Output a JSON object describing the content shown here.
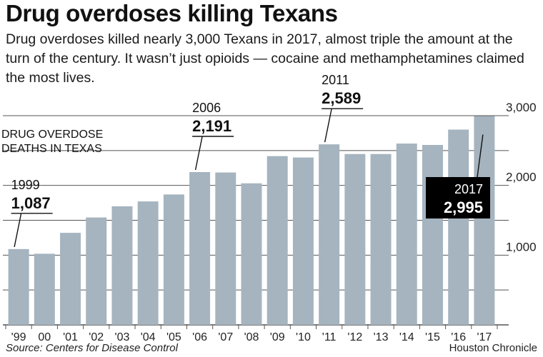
{
  "title": "Drug overdoses killing Texans",
  "subtitle": "Drug overdoses killed nearly 3,000 Texans in 2017, almost triple the amount at the turn of the century. It wasn’t just opioids — cocaine and methamphetamines claimed the most lives.",
  "source": "Source: Centers for Disease Control",
  "credit": "Houston Chronicle",
  "colors": {
    "bar": "#a5b4bf",
    "grid": "#555555",
    "callout_box": "#000000"
  },
  "chart_data": {
    "type": "bar",
    "ylabel_lines": [
      "DRUG OVERDOSE",
      "DEATHS IN TEXAS"
    ],
    "categories": [
      "'99",
      "00",
      "'01",
      "'02",
      "'03",
      "'04",
      "'05",
      "'06",
      "'07",
      "'08",
      "'09",
      "'10",
      "'11",
      "'12",
      "'13",
      "'14",
      "'15",
      "'16",
      "'17"
    ],
    "values": [
      1087,
      1020,
      1320,
      1540,
      1700,
      1770,
      1870,
      2191,
      2185,
      2030,
      2420,
      2400,
      2589,
      2450,
      2450,
      2600,
      2580,
      2800,
      2995
    ],
    "ylim": [
      0,
      3000
    ],
    "yticks": [
      1000,
      2000,
      3000
    ],
    "ytick_labels": [
      "1,000",
      "2,000",
      "3,000"
    ],
    "grid": true,
    "annotations": [
      {
        "index": 0,
        "year": "1999",
        "value": "1,087",
        "style": "plain"
      },
      {
        "index": 7,
        "year": "2006",
        "value": "2,191",
        "style": "plain"
      },
      {
        "index": 12,
        "year": "2011",
        "value": "2,589",
        "style": "plain"
      },
      {
        "index": 18,
        "year": "2017",
        "value": "2,995",
        "style": "box"
      }
    ]
  }
}
